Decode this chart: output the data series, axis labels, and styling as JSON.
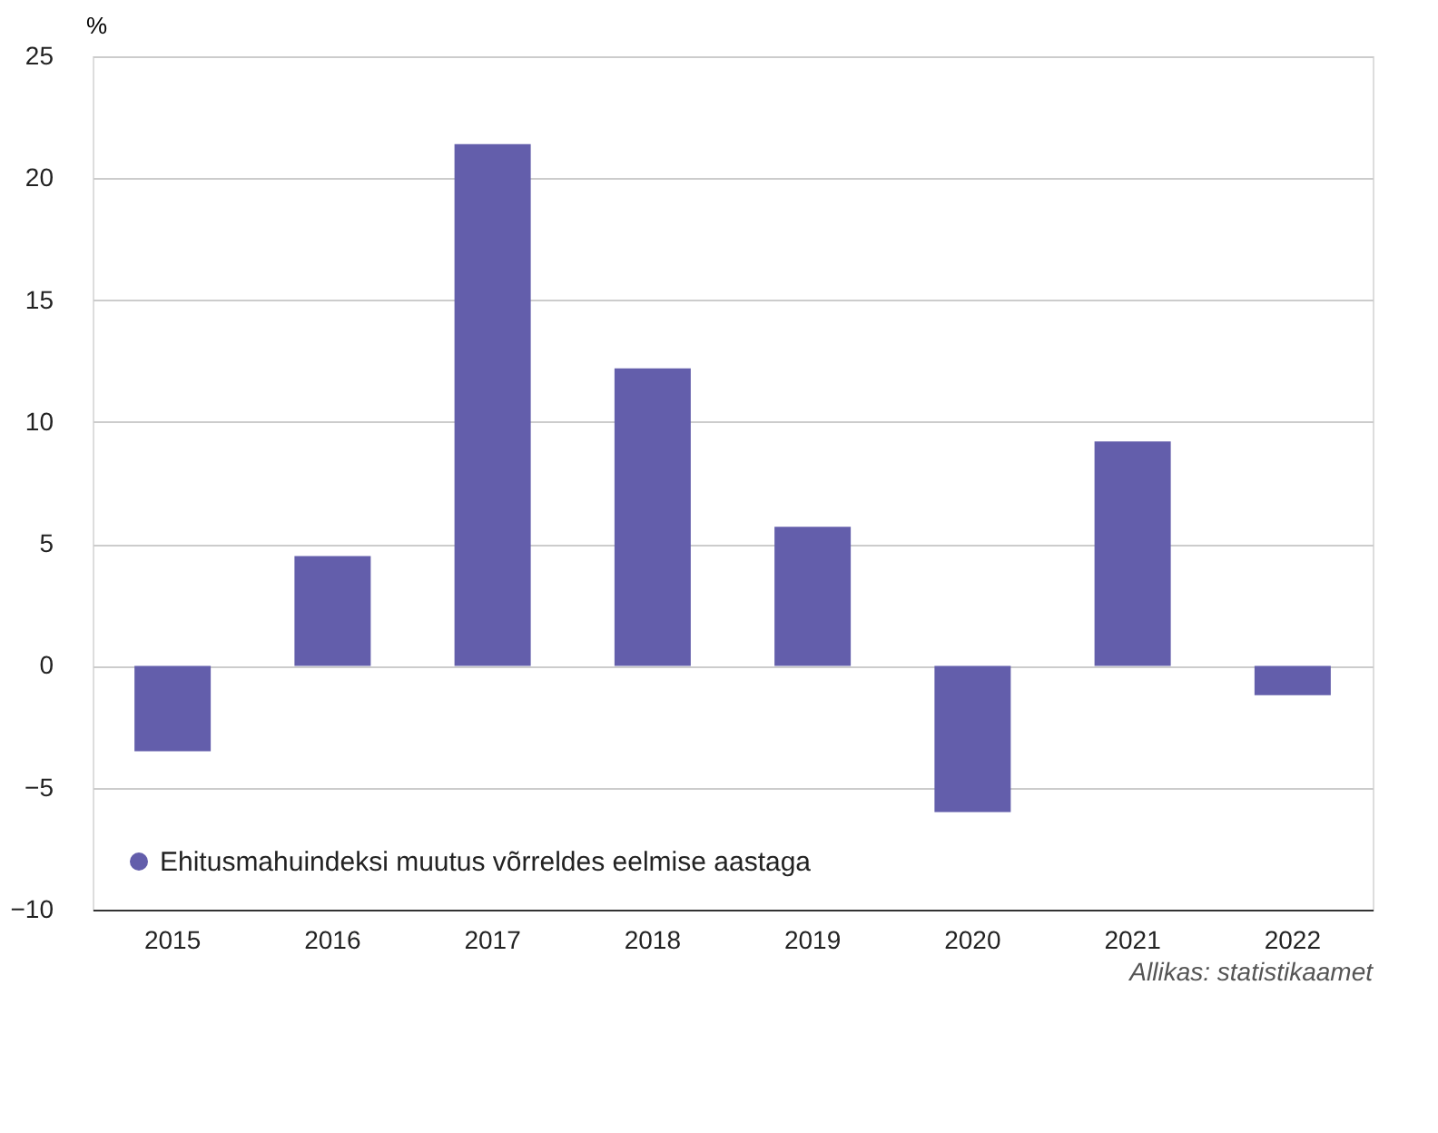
{
  "chart_data": {
    "type": "bar",
    "ylabel": "%",
    "categories": [
      "2015",
      "2016",
      "2017",
      "2018",
      "2019",
      "2020",
      "2021",
      "2022"
    ],
    "series": [
      {
        "name": "Ehitusmahuindeksi muutus võrreldes eelmise aastaga",
        "color": "#635eab",
        "values": [
          -3.5,
          4.5,
          21.4,
          12.2,
          5.7,
          -6.0,
          9.2,
          -1.2
        ]
      }
    ],
    "ylim": [
      -10,
      25
    ],
    "yticks": [
      -10,
      -5,
      0,
      5,
      10,
      15,
      20,
      25
    ],
    "grid": "y",
    "legend": "bottom left",
    "annotations": [
      "Allikas: statistikaamet"
    ]
  }
}
